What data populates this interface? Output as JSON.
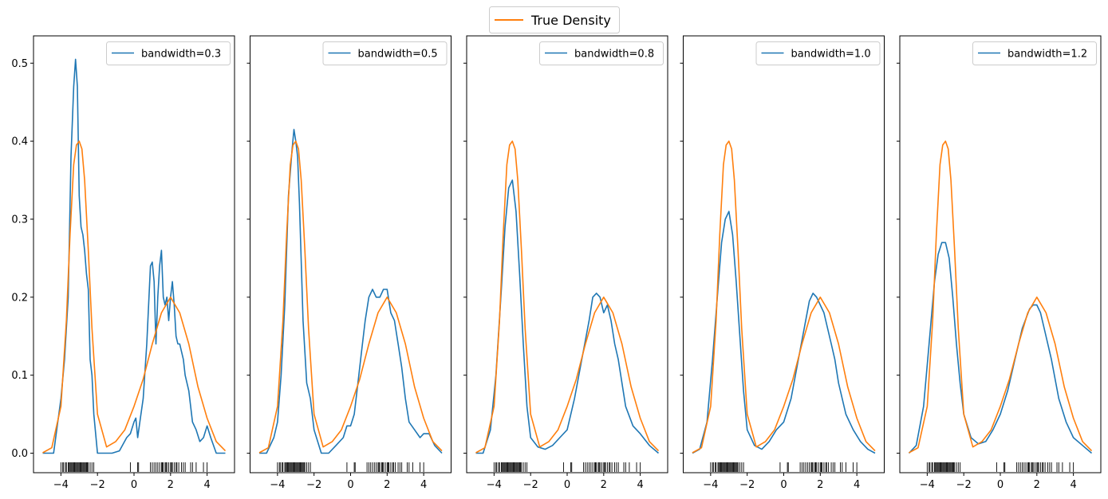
{
  "figure_legend": {
    "label": "True Density",
    "color": "#ff7f0e"
  },
  "chart_data": {
    "type": "line",
    "layout": "1 row x 5 panels, shared y-axis",
    "xlim": [
      -5.5,
      5.5
    ],
    "ylim": [
      -0.025,
      0.535
    ],
    "xticks": [
      -4,
      -2,
      0,
      2,
      4
    ],
    "xtick_labels": [
      "−4",
      "−2",
      "0",
      "2",
      "4"
    ],
    "yticks": [
      0.0,
      0.1,
      0.2,
      0.3,
      0.4,
      0.5
    ],
    "ytick_labels": [
      "0.0",
      "0.1",
      "0.2",
      "0.3",
      "0.4",
      "0.5"
    ],
    "grid": false,
    "true_density": {
      "name": "True Density",
      "color": "#ff7f0e",
      "x": [
        -5.0,
        -4.5,
        -4.0,
        -3.7,
        -3.5,
        -3.3,
        -3.15,
        -3.0,
        -2.85,
        -2.7,
        -2.5,
        -2.3,
        -2.0,
        -1.5,
        -1.0,
        -0.5,
        0.0,
        0.5,
        1.0,
        1.5,
        2.0,
        2.5,
        3.0,
        3.5,
        4.0,
        4.5,
        5.0
      ],
      "y": [
        0.0005,
        0.007,
        0.06,
        0.17,
        0.28,
        0.37,
        0.395,
        0.4,
        0.39,
        0.35,
        0.26,
        0.16,
        0.05,
        0.008,
        0.015,
        0.03,
        0.06,
        0.095,
        0.14,
        0.18,
        0.2,
        0.18,
        0.14,
        0.085,
        0.045,
        0.015,
        0.003
      ]
    },
    "panels": [
      {
        "legend": "bandwidth=0.3",
        "color": "#1f77b4",
        "x": [
          -5.0,
          -4.4,
          -4.0,
          -3.8,
          -3.6,
          -3.45,
          -3.3,
          -3.2,
          -3.1,
          -3.0,
          -2.9,
          -2.8,
          -2.7,
          -2.6,
          -2.5,
          -2.4,
          -2.3,
          -2.2,
          -2.0,
          -1.6,
          -1.2,
          -0.8,
          -0.4,
          -0.2,
          0.0,
          0.1,
          0.2,
          0.35,
          0.5,
          0.7,
          0.9,
          1.0,
          1.1,
          1.2,
          1.3,
          1.4,
          1.5,
          1.6,
          1.7,
          1.8,
          1.9,
          2.0,
          2.1,
          2.2,
          2.3,
          2.4,
          2.5,
          2.6,
          2.7,
          2.8,
          3.0,
          3.2,
          3.4,
          3.6,
          3.8,
          4.0,
          4.2,
          4.5,
          5.0
        ],
        "y": [
          0.0,
          0.0,
          0.07,
          0.12,
          0.2,
          0.38,
          0.47,
          0.505,
          0.47,
          0.33,
          0.29,
          0.28,
          0.26,
          0.23,
          0.21,
          0.12,
          0.1,
          0.05,
          0.0,
          0.0,
          0.0,
          0.003,
          0.02,
          0.025,
          0.04,
          0.045,
          0.02,
          0.045,
          0.07,
          0.14,
          0.24,
          0.245,
          0.22,
          0.14,
          0.2,
          0.24,
          0.26,
          0.2,
          0.19,
          0.2,
          0.17,
          0.2,
          0.22,
          0.19,
          0.15,
          0.14,
          0.14,
          0.13,
          0.12,
          0.1,
          0.08,
          0.04,
          0.03,
          0.015,
          0.02,
          0.035,
          0.02,
          0.0,
          0.0
        ]
      },
      {
        "legend": "bandwidth=0.5",
        "color": "#1f77b4",
        "x": [
          -5.0,
          -4.6,
          -4.2,
          -4.0,
          -3.8,
          -3.6,
          -3.4,
          -3.2,
          -3.1,
          -3.0,
          -2.9,
          -2.8,
          -2.6,
          -2.4,
          -2.2,
          -2.0,
          -1.6,
          -1.2,
          -0.8,
          -0.4,
          -0.2,
          0.0,
          0.2,
          0.4,
          0.6,
          0.8,
          1.0,
          1.2,
          1.4,
          1.6,
          1.8,
          2.0,
          2.2,
          2.4,
          2.6,
          2.8,
          3.0,
          3.2,
          3.5,
          3.8,
          4.0,
          4.3,
          4.6,
          5.0
        ],
        "y": [
          0.0,
          0.0,
          0.02,
          0.04,
          0.1,
          0.19,
          0.33,
          0.39,
          0.415,
          0.4,
          0.38,
          0.32,
          0.17,
          0.09,
          0.07,
          0.03,
          0.0,
          0.0,
          0.01,
          0.02,
          0.035,
          0.035,
          0.05,
          0.09,
          0.13,
          0.17,
          0.2,
          0.21,
          0.2,
          0.2,
          0.21,
          0.21,
          0.18,
          0.17,
          0.14,
          0.11,
          0.07,
          0.04,
          0.03,
          0.02,
          0.025,
          0.025,
          0.01,
          0.0
        ]
      },
      {
        "legend": "bandwidth=0.8",
        "color": "#1f77b4",
        "x": [
          -5.0,
          -4.6,
          -4.2,
          -3.9,
          -3.6,
          -3.4,
          -3.2,
          -3.0,
          -2.8,
          -2.6,
          -2.4,
          -2.2,
          -2.0,
          -1.6,
          -1.2,
          -0.8,
          -0.4,
          0.0,
          0.4,
          0.8,
          1.2,
          1.4,
          1.6,
          1.8,
          2.0,
          2.2,
          2.4,
          2.6,
          2.8,
          3.0,
          3.2,
          3.6,
          4.0,
          4.5,
          5.0
        ],
        "y": [
          0.0,
          0.0,
          0.03,
          0.1,
          0.21,
          0.29,
          0.34,
          0.35,
          0.31,
          0.23,
          0.14,
          0.06,
          0.02,
          0.008,
          0.005,
          0.01,
          0.02,
          0.03,
          0.07,
          0.12,
          0.17,
          0.2,
          0.205,
          0.2,
          0.18,
          0.19,
          0.17,
          0.14,
          0.12,
          0.09,
          0.06,
          0.035,
          0.025,
          0.01,
          0.0
        ]
      },
      {
        "legend": "bandwidth=1.0",
        "color": "#1f77b4",
        "x": [
          -5.0,
          -4.6,
          -4.2,
          -3.9,
          -3.6,
          -3.4,
          -3.2,
          -3.0,
          -2.8,
          -2.6,
          -2.4,
          -2.2,
          -2.0,
          -1.6,
          -1.2,
          -0.8,
          -0.4,
          0.0,
          0.4,
          0.8,
          1.2,
          1.4,
          1.6,
          1.8,
          2.0,
          2.2,
          2.4,
          2.6,
          2.8,
          3.0,
          3.4,
          3.8,
          4.2,
          4.6,
          5.0
        ],
        "y": [
          0.0,
          0.005,
          0.04,
          0.12,
          0.21,
          0.27,
          0.3,
          0.31,
          0.28,
          0.22,
          0.15,
          0.08,
          0.03,
          0.01,
          0.005,
          0.015,
          0.03,
          0.04,
          0.07,
          0.12,
          0.17,
          0.195,
          0.205,
          0.2,
          0.19,
          0.18,
          0.16,
          0.14,
          0.12,
          0.09,
          0.05,
          0.03,
          0.015,
          0.005,
          0.0
        ]
      },
      {
        "legend": "bandwidth=1.2",
        "color": "#1f77b4",
        "x": [
          -5.0,
          -4.6,
          -4.2,
          -3.9,
          -3.6,
          -3.4,
          -3.2,
          -3.0,
          -2.8,
          -2.6,
          -2.4,
          -2.2,
          -2.0,
          -1.6,
          -1.2,
          -0.8,
          -0.4,
          0.0,
          0.4,
          0.8,
          1.2,
          1.6,
          1.8,
          2.0,
          2.2,
          2.4,
          2.8,
          3.2,
          3.6,
          4.0,
          4.5,
          5.0
        ],
        "y": [
          0.0,
          0.01,
          0.06,
          0.14,
          0.22,
          0.255,
          0.27,
          0.27,
          0.25,
          0.2,
          0.14,
          0.09,
          0.05,
          0.02,
          0.012,
          0.015,
          0.03,
          0.05,
          0.08,
          0.12,
          0.16,
          0.185,
          0.19,
          0.19,
          0.18,
          0.16,
          0.12,
          0.07,
          0.04,
          0.02,
          0.01,
          0.0
        ]
      }
    ],
    "samples": [
      -4.0,
      -3.9,
      -3.85,
      -3.75,
      -3.7,
      -3.6,
      -3.55,
      -3.5,
      -3.45,
      -3.4,
      -3.35,
      -3.3,
      -3.25,
      -3.2,
      -3.15,
      -3.1,
      -3.05,
      -3.0,
      -2.95,
      -2.9,
      -2.85,
      -2.8,
      -2.75,
      -2.7,
      -2.65,
      -2.6,
      -2.55,
      -2.5,
      -2.4,
      -2.3,
      -2.2,
      -0.2,
      0.2,
      0.25,
      0.9,
      1.0,
      1.1,
      1.2,
      1.3,
      1.4,
      1.5,
      1.55,
      1.6,
      1.7,
      1.75,
      1.8,
      1.9,
      2.0,
      2.05,
      2.1,
      2.2,
      2.3,
      2.35,
      2.45,
      2.6,
      2.7,
      2.8,
      3.1,
      3.2,
      3.4,
      3.8,
      4.0
    ]
  }
}
